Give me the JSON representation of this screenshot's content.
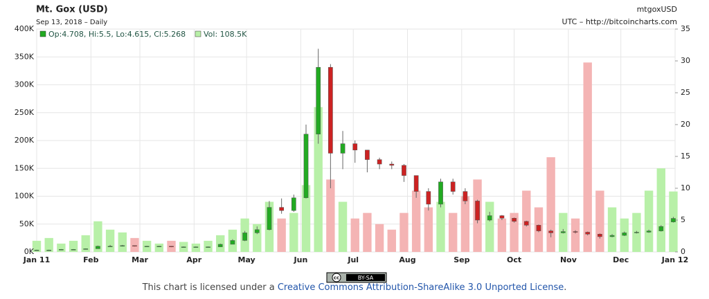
{
  "chart_data": {
    "type": "candlestick",
    "title": "Mt. Gox (USD)",
    "subtitle": "Sep 13, 2018 – Daily",
    "symbol": "mtgoxUSD",
    "source": "UTC – http://bitcoincharts.com",
    "ohlc_label": "Op:4.708, Hi:5.5, Lo:4.615, Cl:5.268",
    "volume_label": "Vol: 108.5K",
    "up_color": "#22aa22",
    "down_color": "#cc2222",
    "volume_up_color": "#b8f0a8",
    "volume_down_color": "#f4b4b4",
    "grid": true,
    "xlim": [
      0,
      365
    ],
    "xticks": [
      {
        "value": 0,
        "label": "Jan 11"
      },
      {
        "value": 31,
        "label": "Feb"
      },
      {
        "value": 59,
        "label": "Mar"
      },
      {
        "value": 90,
        "label": "Apr"
      },
      {
        "value": 120,
        "label": "May"
      },
      {
        "value": 151,
        "label": "Jun"
      },
      {
        "value": 181,
        "label": "Jul"
      },
      {
        "value": 212,
        "label": "Aug"
      },
      {
        "value": 243,
        "label": "Sep"
      },
      {
        "value": 273,
        "label": "Oct"
      },
      {
        "value": 304,
        "label": "Nov"
      },
      {
        "value": 334,
        "label": "Dec"
      },
      {
        "value": 365,
        "label": "Jan 12"
      }
    ],
    "ylim": [
      0,
      35
    ],
    "yticks": [
      0,
      5,
      10,
      15,
      20,
      25,
      30,
      35
    ],
    "y2lim": [
      0,
      400000
    ],
    "y2ticks": [
      {
        "value": 0,
        "label": "0K"
      },
      {
        "value": 50000,
        "label": "50K"
      },
      {
        "value": 100000,
        "label": "100K"
      },
      {
        "value": 150000,
        "label": "150K"
      },
      {
        "value": 200000,
        "label": "200K"
      },
      {
        "value": 250000,
        "label": "250K"
      },
      {
        "value": 300000,
        "label": "300K"
      },
      {
        "value": 350000,
        "label": "350K"
      },
      {
        "value": 400000,
        "label": "400K"
      }
    ],
    "x": [
      0,
      7,
      14,
      21,
      28,
      35,
      42,
      49,
      56,
      63,
      70,
      77,
      84,
      91,
      98,
      105,
      112,
      119,
      126,
      133,
      140,
      147,
      154,
      161,
      168,
      175,
      182,
      189,
      196,
      203,
      210,
      217,
      224,
      231,
      238,
      245,
      252,
      259,
      266,
      273,
      280,
      287,
      294,
      301,
      308,
      315,
      322,
      329,
      336,
      343,
      350,
      357,
      364
    ],
    "open": [
      0.3,
      0.3,
      0.3,
      0.4,
      0.4,
      0.5,
      0.9,
      0.9,
      1.0,
      0.9,
      0.9,
      0.9,
      0.8,
      0.8,
      0.8,
      0.8,
      1.2,
      1.8,
      3.0,
      3.5,
      7.0,
      6.5,
      8.5,
      18.5,
      29,
      15.5,
      17,
      16,
      14.5,
      13.8,
      13.6,
      12,
      9.5,
      7.5,
      11,
      9.5,
      8,
      5,
      5.7,
      5.3,
      4.8,
      4.2,
      3.3,
      3.0,
      3.2,
      3.1,
      2.8,
      2.4,
      2.6,
      3.0,
      3.1,
      3.3,
      4.708
    ],
    "high": [
      0.35,
      0.35,
      0.45,
      0.45,
      0.55,
      1.0,
      1.1,
      1.1,
      1.0,
      0.95,
      0.95,
      0.9,
      0.85,
      0.85,
      0.85,
      1.3,
      2.0,
      3.3,
      4.0,
      8.0,
      8.4,
      9.0,
      20,
      31.9,
      29.5,
      19,
      17.5,
      16,
      14.8,
      14.2,
      13.8,
      12,
      10,
      11.5,
      11.5,
      10,
      8.2,
      6.3,
      5.8,
      5.4,
      4.9,
      4.3,
      3.5,
      3.6,
      3.4,
      3.2,
      2.9,
      2.8,
      3.2,
      3.3,
      3.5,
      4.2,
      5.5
    ],
    "low": [
      0.25,
      0.27,
      0.3,
      0.38,
      0.4,
      0.5,
      0.85,
      0.85,
      0.85,
      0.85,
      0.85,
      0.75,
      0.75,
      0.7,
      0.7,
      0.8,
      1.2,
      1.7,
      2.8,
      3.4,
      6.0,
      6.3,
      8.4,
      17,
      10,
      13,
      14,
      12.5,
      13,
      13,
      11,
      8.5,
      6.5,
      7,
      9,
      7.5,
      4.5,
      4.8,
      5,
      4.6,
      4,
      3.1,
      2.3,
      2.9,
      2.9,
      2.6,
      2.1,
      2.3,
      2.5,
      2.9,
      3.0,
      3.2,
      4.615
    ],
    "close": [
      0.3,
      0.3,
      0.4,
      0.4,
      0.5,
      0.9,
      0.9,
      1.0,
      0.9,
      0.9,
      0.9,
      0.8,
      0.8,
      0.8,
      0.8,
      1.2,
      1.8,
      3.0,
      3.5,
      7.0,
      6.5,
      8.5,
      18.5,
      29.0,
      15.5,
      17,
      16,
      14.5,
      13.8,
      13.6,
      12,
      9.5,
      7.5,
      11,
      9.5,
      8,
      5,
      5.7,
      5.3,
      4.8,
      4.2,
      3.3,
      3.0,
      3.2,
      3.1,
      2.8,
      2.4,
      2.6,
      3.0,
      3.1,
      3.3,
      4.0,
      5.268
    ],
    "volume": [
      20000,
      25000,
      15000,
      20000,
      30000,
      55000,
      40000,
      35000,
      25000,
      20000,
      15000,
      20000,
      18000,
      15000,
      20000,
      30000,
      40000,
      60000,
      50000,
      90000,
      60000,
      70000,
      120000,
      260000,
      130000,
      90000,
      60000,
      70000,
      50000,
      40000,
      70000,
      110000,
      80000,
      90000,
      70000,
      100000,
      130000,
      90000,
      60000,
      70000,
      110000,
      80000,
      170000,
      70000,
      60000,
      340000,
      110000,
      80000,
      60000,
      70000,
      110000,
      150000,
      108500
    ]
  },
  "license": {
    "badge_cc": "cc",
    "badge_text": "BY-SA",
    "prefix": "This chart is licensed under a ",
    "link": "Creative Commons Attribution-ShareAlike 3.0 Unported License",
    "suffix": "."
  }
}
